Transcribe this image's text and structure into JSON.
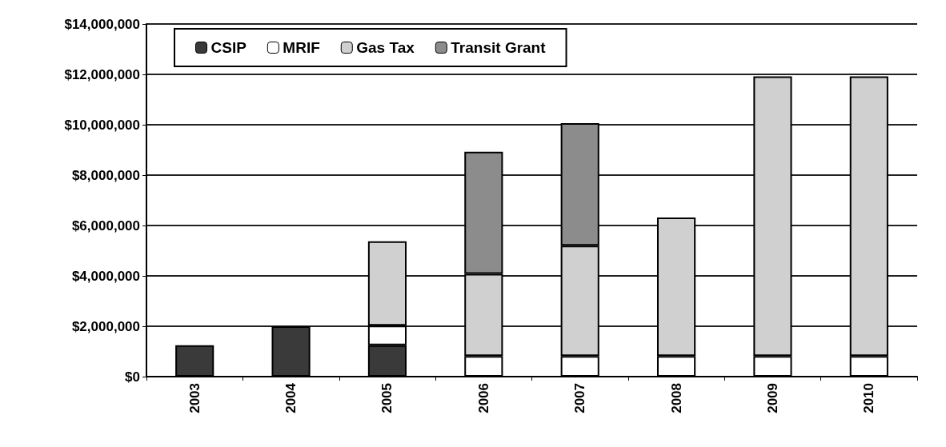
{
  "chart_data": {
    "type": "bar",
    "stacked": true,
    "categories": [
      "2003",
      "2004",
      "2005",
      "2006",
      "2007",
      "2008",
      "2009",
      "2010"
    ],
    "series": [
      {
        "name": "CSIP",
        "color": "#3a3a3a",
        "values": [
          1250000,
          2000000,
          1250000,
          null,
          null,
          null,
          null,
          null
        ]
      },
      {
        "name": "MRIF",
        "color": "#ffffff",
        "values": [
          null,
          null,
          770000,
          820000,
          820000,
          820000,
          820000,
          820000
        ]
      },
      {
        "name": "Gas Tax",
        "color": "#d0d0d0",
        "values": [
          null,
          null,
          3350000,
          3260000,
          4380000,
          5500000,
          11100000,
          11100000
        ]
      },
      {
        "name": "Transit Grant",
        "color": "#8c8c8c",
        "values": [
          null,
          null,
          null,
          4850000,
          4860000,
          null,
          null,
          null
        ]
      }
    ],
    "ylim": [
      0,
      14000000
    ],
    "yticks": [
      {
        "value": 0,
        "label": "$0"
      },
      {
        "value": 2000000,
        "label": "$2,000,000"
      },
      {
        "value": 4000000,
        "label": "$4,000,000"
      },
      {
        "value": 6000000,
        "label": "$6,000,000"
      },
      {
        "value": 8000000,
        "label": "$8,000,000"
      },
      {
        "value": 10000000,
        "label": "$10,000,000"
      },
      {
        "value": 12000000,
        "label": "$12,000,000"
      },
      {
        "value": 14000000,
        "label": "$14,000,000"
      }
    ],
    "grid": "y",
    "legend": "top left"
  }
}
